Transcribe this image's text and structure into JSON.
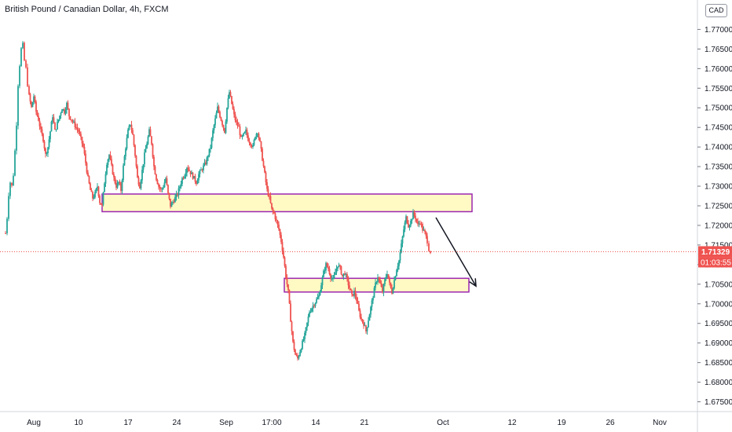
{
  "header": {
    "title": "British Pound / Canadian Dollar, 4h, FXCM",
    "currency_badge": "CAD"
  },
  "colors": {
    "up": "#26a69a",
    "down": "#ef5350",
    "zone_fill": "#fff9c4",
    "zone_border": "#9c27b0",
    "last_price_bg": "#ef5350",
    "countdown_bg": "#ef5350",
    "axis_line": "#d1d4dc",
    "arrow": "#131722"
  },
  "chart_data": {
    "type": "candlestick",
    "symbol": "GBPCAD",
    "timeframe": "4h",
    "source": "FXCM",
    "ylim": [
      1.6725,
      1.7775
    ],
    "y_ticks": [
      "1.77000",
      "1.76500",
      "1.76000",
      "1.75500",
      "1.75000",
      "1.74500",
      "1.74000",
      "1.73500",
      "1.73000",
      "1.72500",
      "1.72000",
      "1.71500",
      "1.71000",
      "1.70500",
      "1.70000",
      "1.69500",
      "1.69000",
      "1.68500",
      "1.68000",
      "1.67500"
    ],
    "x_ticks": [
      {
        "label": "Aug",
        "t": 3
      },
      {
        "label": "10",
        "t": 60
      },
      {
        "label": "17",
        "t": 123
      },
      {
        "label": "24",
        "t": 185
      },
      {
        "label": "Sep",
        "t": 248
      },
      {
        "label": "17:00",
        "t": 306
      },
      {
        "label": "14",
        "t": 362
      },
      {
        "label": "21",
        "t": 424
      },
      {
        "label": "Oct",
        "t": 524
      },
      {
        "label": "12",
        "t": 612
      },
      {
        "label": "19",
        "t": 675
      },
      {
        "label": "26",
        "t": 737
      },
      {
        "label": "Nov",
        "t": 800
      }
    ],
    "price_path": [
      [
        -33,
        1.718
      ],
      [
        -31,
        1.722
      ],
      [
        -29,
        1.728
      ],
      [
        -27,
        1.731
      ],
      [
        -25,
        1.73
      ],
      [
        -23,
        1.733
      ],
      [
        -21,
        1.739
      ],
      [
        -19,
        1.746
      ],
      [
        -17,
        1.756
      ],
      [
        -15,
        1.761
      ],
      [
        -13,
        1.765
      ],
      [
        -11,
        1.766
      ],
      [
        -9,
        1.762
      ],
      [
        -7,
        1.76
      ],
      [
        -5,
        1.756
      ],
      [
        -3,
        1.753
      ],
      [
        0,
        1.75
      ],
      [
        3,
        1.753
      ],
      [
        6,
        1.749
      ],
      [
        9,
        1.747
      ],
      [
        12,
        1.744
      ],
      [
        15,
        1.742
      ],
      [
        18,
        1.738
      ],
      [
        21,
        1.74
      ],
      [
        24,
        1.744
      ],
      [
        27,
        1.748
      ],
      [
        30,
        1.744
      ],
      [
        33,
        1.746
      ],
      [
        36,
        1.748
      ],
      [
        39,
        1.75
      ],
      [
        42,
        1.749
      ],
      [
        45,
        1.751
      ],
      [
        48,
        1.748
      ],
      [
        51,
        1.747
      ],
      [
        54,
        1.746
      ],
      [
        57,
        1.745
      ],
      [
        60,
        1.744
      ],
      [
        63,
        1.742
      ],
      [
        66,
        1.74
      ],
      [
        69,
        1.736
      ],
      [
        72,
        1.732
      ],
      [
        75,
        1.729
      ],
      [
        78,
        1.727
      ],
      [
        81,
        1.728
      ],
      [
        84,
        1.73
      ],
      [
        87,
        1.726
      ],
      [
        90,
        1.725
      ],
      [
        93,
        1.731
      ],
      [
        96,
        1.736
      ],
      [
        99,
        1.738
      ],
      [
        102,
        1.735
      ],
      [
        105,
        1.732
      ],
      [
        108,
        1.73
      ],
      [
        111,
        1.731
      ],
      [
        114,
        1.729
      ],
      [
        117,
        1.735
      ],
      [
        120,
        1.74
      ],
      [
        123,
        1.744
      ],
      [
        126,
        1.746
      ],
      [
        129,
        1.743
      ],
      [
        132,
        1.738
      ],
      [
        135,
        1.732
      ],
      [
        138,
        1.73
      ],
      [
        141,
        1.734
      ],
      [
        144,
        1.738
      ],
      [
        147,
        1.741
      ],
      [
        150,
        1.744
      ],
      [
        153,
        1.741
      ],
      [
        156,
        1.735
      ],
      [
        159,
        1.732
      ],
      [
        162,
        1.73
      ],
      [
        165,
        1.729
      ],
      [
        168,
        1.73
      ],
      [
        171,
        1.732
      ],
      [
        174,
        1.728
      ],
      [
        177,
        1.725
      ],
      [
        180,
        1.726
      ],
      [
        183,
        1.727
      ],
      [
        186,
        1.728
      ],
      [
        189,
        1.73
      ],
      [
        192,
        1.732
      ],
      [
        195,
        1.733
      ],
      [
        198,
        1.735
      ],
      [
        201,
        1.734
      ],
      [
        204,
        1.733
      ],
      [
        207,
        1.732
      ],
      [
        210,
        1.731
      ],
      [
        213,
        1.733
      ],
      [
        216,
        1.734
      ],
      [
        219,
        1.735
      ],
      [
        222,
        1.736
      ],
      [
        225,
        1.738
      ],
      [
        228,
        1.74
      ],
      [
        231,
        1.744
      ],
      [
        234,
        1.747
      ],
      [
        237,
        1.75
      ],
      [
        240,
        1.748
      ],
      [
        243,
        1.746
      ],
      [
        246,
        1.744
      ],
      [
        249,
        1.75
      ],
      [
        252,
        1.754
      ],
      [
        255,
        1.751
      ],
      [
        258,
        1.748
      ],
      [
        261,
        1.746
      ],
      [
        264,
        1.745
      ],
      [
        267,
        1.742
      ],
      [
        270,
        1.743
      ],
      [
        273,
        1.744
      ],
      [
        276,
        1.742
      ],
      [
        279,
        1.741
      ],
      [
        282,
        1.74
      ],
      [
        285,
        1.743
      ],
      [
        288,
        1.744
      ],
      [
        291,
        1.741
      ],
      [
        294,
        1.737
      ],
      [
        297,
        1.733
      ],
      [
        300,
        1.729
      ],
      [
        303,
        1.727
      ],
      [
        306,
        1.724
      ],
      [
        309,
        1.723
      ],
      [
        312,
        1.721
      ],
      [
        315,
        1.719
      ],
      [
        318,
        1.716
      ],
      [
        321,
        1.712
      ],
      [
        324,
        1.707
      ],
      [
        327,
        1.703
      ],
      [
        330,
        1.696
      ],
      [
        333,
        1.69
      ],
      [
        336,
        1.687
      ],
      [
        339,
        1.686
      ],
      [
        342,
        1.688
      ],
      [
        345,
        1.69
      ],
      [
        348,
        1.692
      ],
      [
        351,
        1.695
      ],
      [
        354,
        1.698
      ],
      [
        357,
        1.699
      ],
      [
        360,
        1.7
      ],
      [
        363,
        1.701
      ],
      [
        366,
        1.702
      ],
      [
        369,
        1.705
      ],
      [
        372,
        1.708
      ],
      [
        375,
        1.71
      ],
      [
        378,
        1.709
      ],
      [
        381,
        1.707
      ],
      [
        384,
        1.706
      ],
      [
        387,
        1.708
      ],
      [
        390,
        1.71
      ],
      [
        393,
        1.709
      ],
      [
        396,
        1.707
      ],
      [
        399,
        1.708
      ],
      [
        402,
        1.706
      ],
      [
        405,
        1.704
      ],
      [
        408,
        1.702
      ],
      [
        411,
        1.703
      ],
      [
        414,
        1.701
      ],
      [
        417,
        1.698
      ],
      [
        420,
        1.696
      ],
      [
        423,
        1.695
      ],
      [
        426,
        1.693
      ],
      [
        429,
        1.696
      ],
      [
        432,
        1.699
      ],
      [
        435,
        1.702
      ],
      [
        438,
        1.705
      ],
      [
        441,
        1.707
      ],
      [
        444,
        1.705
      ],
      [
        447,
        1.703
      ],
      [
        450,
        1.706
      ],
      [
        453,
        1.708
      ],
      [
        456,
        1.705
      ],
      [
        459,
        1.703
      ],
      [
        462,
        1.706
      ],
      [
        465,
        1.709
      ],
      [
        468,
        1.711
      ],
      [
        471,
        1.715
      ],
      [
        474,
        1.719
      ],
      [
        477,
        1.722
      ],
      [
        480,
        1.72
      ],
      [
        483,
        1.721
      ],
      [
        486,
        1.723
      ],
      [
        489,
        1.722
      ],
      [
        492,
        1.72
      ],
      [
        495,
        1.721
      ],
      [
        498,
        1.719
      ],
      [
        501,
        1.718
      ],
      [
        504,
        1.716
      ],
      [
        506,
        1.714
      ],
      [
        508,
        1.7133
      ]
    ],
    "zones": [
      {
        "name": "resistance",
        "t_start": 90,
        "t_end": 561,
        "y_top": 1.728,
        "y_bottom": 1.7235
      },
      {
        "name": "support",
        "t_start": 322,
        "t_end": 557,
        "y_top": 1.7065,
        "y_bottom": 1.703
      }
    ],
    "forecast_arrow": {
      "t_start": 515,
      "y_start": 1.722,
      "t_end": 566,
      "y_end": 1.7045
    },
    "last_price": {
      "value": "1.71329",
      "countdown": "01:03:55",
      "y": 1.71329
    }
  }
}
